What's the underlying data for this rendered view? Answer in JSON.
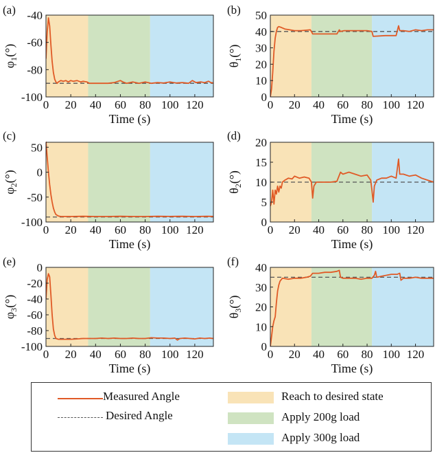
{
  "chart_data": [
    {
      "panel_label": "(a)",
      "type": "line",
      "ylabel": "φ1(°)",
      "ylabel_main": "φ",
      "ylabel_sub": "1",
      "xlabel": "Time (s)",
      "ylim": [
        -100,
        -40
      ],
      "yticks": [
        -40,
        -60,
        -80,
        -100
      ],
      "xlim": [
        0,
        135
      ],
      "xticks": [
        0,
        20,
        40,
        60,
        80,
        100,
        120
      ],
      "desired": -90,
      "measured": [
        [
          0,
          -72
        ],
        [
          1,
          -52
        ],
        [
          2,
          -42
        ],
        [
          3,
          -48
        ],
        [
          4,
          -62
        ],
        [
          5,
          -74
        ],
        [
          6,
          -82
        ],
        [
          7,
          -87
        ],
        [
          8,
          -89
        ],
        [
          9,
          -90
        ],
        [
          10,
          -89
        ],
        [
          12,
          -88
        ],
        [
          14,
          -88.5
        ],
        [
          16,
          -88
        ],
        [
          18,
          -89
        ],
        [
          20,
          -88
        ],
        [
          22,
          -88.5
        ],
        [
          25,
          -88
        ],
        [
          28,
          -89
        ],
        [
          30,
          -88.5
        ],
        [
          33,
          -89
        ],
        [
          35,
          -90
        ],
        [
          40,
          -90
        ],
        [
          50,
          -90
        ],
        [
          55,
          -89.5
        ],
        [
          60,
          -88
        ],
        [
          62,
          -89
        ],
        [
          65,
          -90
        ],
        [
          70,
          -89
        ],
        [
          75,
          -90
        ],
        [
          80,
          -89
        ],
        [
          85,
          -90
        ],
        [
          90,
          -89.5
        ],
        [
          95,
          -89.8
        ],
        [
          100,
          -89
        ],
        [
          105,
          -89.8
        ],
        [
          110,
          -89.5
        ],
        [
          115,
          -90
        ],
        [
          118,
          -88
        ],
        [
          121,
          -89.5
        ],
        [
          125,
          -89
        ],
        [
          128,
          -89.5
        ],
        [
          131,
          -88.5
        ],
        [
          133,
          -89.5
        ],
        [
          135,
          -89.8
        ]
      ]
    },
    {
      "panel_label": "(b)",
      "type": "line",
      "ylabel": "θ1(°)",
      "ylabel_main": "θ",
      "ylabel_sub": "1",
      "xlabel": "Time (s)",
      "ylim": [
        0,
        50
      ],
      "yticks": [
        0,
        10,
        20,
        30,
        40,
        50
      ],
      "xlim": [
        0,
        135
      ],
      "xticks": [
        0,
        20,
        40,
        60,
        80,
        100,
        120
      ],
      "desired": 40,
      "measured": [
        [
          0,
          0
        ],
        [
          1,
          5
        ],
        [
          2,
          15
        ],
        [
          3,
          28
        ],
        [
          4,
          36
        ],
        [
          5,
          40
        ],
        [
          6,
          42.5
        ],
        [
          7,
          43
        ],
        [
          9,
          42.5
        ],
        [
          12,
          41.5
        ],
        [
          16,
          41
        ],
        [
          20,
          40.5
        ],
        [
          25,
          40.5
        ],
        [
          30,
          40.8
        ],
        [
          33,
          41
        ],
        [
          34,
          40
        ],
        [
          35,
          38.5
        ],
        [
          45,
          38.5
        ],
        [
          55,
          38.5
        ],
        [
          57,
          41
        ],
        [
          58,
          40
        ],
        [
          61,
          40.5
        ],
        [
          70,
          40.5
        ],
        [
          80,
          40.5
        ],
        [
          84,
          40
        ],
        [
          85,
          37
        ],
        [
          95,
          37.5
        ],
        [
          104,
          37.5
        ],
        [
          106,
          43.5
        ],
        [
          107,
          40.5
        ],
        [
          110,
          40.5
        ],
        [
          115,
          40
        ],
        [
          120,
          41
        ],
        [
          125,
          40.5
        ],
        [
          130,
          41
        ],
        [
          135,
          41
        ]
      ]
    },
    {
      "panel_label": "(c)",
      "type": "line",
      "ylabel": "φ2(°)",
      "ylabel_main": "φ",
      "ylabel_sub": "2",
      "xlabel": "Time (s)",
      "ylim": [
        -100,
        60
      ],
      "yticks": [
        50,
        0,
        -50,
        -100
      ],
      "xlim": [
        0,
        135
      ],
      "xticks": [
        0,
        20,
        40,
        60,
        80,
        100,
        120
      ],
      "desired": -90,
      "measured": [
        [
          0,
          62
        ],
        [
          1,
          30
        ],
        [
          2,
          0
        ],
        [
          3,
          -25
        ],
        [
          4,
          -45
        ],
        [
          5,
          -60
        ],
        [
          6,
          -72
        ],
        [
          7,
          -80
        ],
        [
          8,
          -85
        ],
        [
          10,
          -88
        ],
        [
          12,
          -89
        ],
        [
          20,
          -89
        ],
        [
          30,
          -88.5
        ],
        [
          40,
          -89
        ],
        [
          50,
          -89
        ],
        [
          60,
          -88.5
        ],
        [
          70,
          -89
        ],
        [
          80,
          -89
        ],
        [
          90,
          -88.5
        ],
        [
          100,
          -88.8
        ],
        [
          110,
          -88.5
        ],
        [
          120,
          -89
        ],
        [
          130,
          -88.5
        ],
        [
          135,
          -88.8
        ]
      ]
    },
    {
      "panel_label": "(d)",
      "type": "line",
      "ylabel": "θ2(°)",
      "ylabel_main": "θ",
      "ylabel_sub": "2",
      "xlabel": "Time (s)",
      "ylim": [
        0,
        20
      ],
      "yticks": [
        0,
        5,
        10,
        15,
        20
      ],
      "xlim": [
        0,
        135
      ],
      "xticks": [
        0,
        20,
        40,
        60,
        80,
        100,
        120
      ],
      "desired": 10,
      "measured": [
        [
          0,
          4
        ],
        [
          1,
          5
        ],
        [
          2,
          8
        ],
        [
          3,
          4.5
        ],
        [
          4,
          8
        ],
        [
          5,
          7
        ],
        [
          6,
          9
        ],
        [
          7,
          7.5
        ],
        [
          8,
          9
        ],
        [
          9,
          8.5
        ],
        [
          10,
          10
        ],
        [
          12,
          10.5
        ],
        [
          15,
          11
        ],
        [
          18,
          10.8
        ],
        [
          20,
          11.5
        ],
        [
          24,
          11
        ],
        [
          28,
          11.3
        ],
        [
          32,
          11
        ],
        [
          34,
          10
        ],
        [
          35,
          6
        ],
        [
          36,
          9
        ],
        [
          38,
          10
        ],
        [
          42,
          10
        ],
        [
          50,
          10
        ],
        [
          55,
          10.2
        ],
        [
          58,
          12.5
        ],
        [
          60,
          12
        ],
        [
          65,
          12.5
        ],
        [
          70,
          12
        ],
        [
          75,
          11.5
        ],
        [
          80,
          11.8
        ],
        [
          83,
          10.5
        ],
        [
          84,
          8
        ],
        [
          85,
          5
        ],
        [
          86,
          9
        ],
        [
          88,
          10.5
        ],
        [
          92,
          11
        ],
        [
          96,
          11
        ],
        [
          100,
          11.5
        ],
        [
          104,
          11
        ],
        [
          106,
          15.8
        ],
        [
          107,
          12
        ],
        [
          110,
          12
        ],
        [
          115,
          11.5
        ],
        [
          120,
          11.8
        ],
        [
          125,
          11
        ],
        [
          130,
          10.5
        ],
        [
          135,
          10
        ]
      ]
    },
    {
      "panel_label": "(e)",
      "type": "line",
      "ylabel": "φ3(°)",
      "ylabel_main": "φ",
      "ylabel_sub": "3",
      "xlabel": "Time (s)",
      "ylim": [
        -100,
        0
      ],
      "yticks": [
        0,
        -20,
        -40,
        -60,
        -80,
        -100
      ],
      "xlim": [
        0,
        135
      ],
      "xticks": [
        0,
        20,
        40,
        60,
        80,
        100,
        120
      ],
      "desired": -90,
      "measured": [
        [
          0,
          -40
        ],
        [
          1,
          -15
        ],
        [
          2,
          -8
        ],
        [
          3,
          -12
        ],
        [
          4,
          -35
        ],
        [
          5,
          -60
        ],
        [
          6,
          -78
        ],
        [
          7,
          -86
        ],
        [
          8,
          -90
        ],
        [
          10,
          -91
        ],
        [
          15,
          -91
        ],
        [
          20,
          -91
        ],
        [
          25,
          -90.5
        ],
        [
          30,
          -90
        ],
        [
          35,
          -90
        ],
        [
          40,
          -90
        ],
        [
          45,
          -89.5
        ],
        [
          50,
          -90
        ],
        [
          55,
          -89.5
        ],
        [
          60,
          -90
        ],
        [
          65,
          -90
        ],
        [
          70,
          -89.5
        ],
        [
          75,
          -90
        ],
        [
          80,
          -90
        ],
        [
          85,
          -89
        ],
        [
          90,
          -89.5
        ],
        [
          95,
          -89.5
        ],
        [
          100,
          -90
        ],
        [
          104,
          -89.5
        ],
        [
          106,
          -92
        ],
        [
          108,
          -90
        ],
        [
          112,
          -89.5
        ],
        [
          116,
          -90
        ],
        [
          120,
          -90.5
        ],
        [
          124,
          -89.5
        ],
        [
          128,
          -90
        ],
        [
          132,
          -89.5
        ],
        [
          135,
          -90
        ]
      ]
    },
    {
      "panel_label": "(f)",
      "type": "line",
      "ylabel": "θ3(°)",
      "ylabel_main": "θ",
      "ylabel_sub": "3",
      "xlabel": "Time (s)",
      "ylim": [
        0,
        40
      ],
      "yticks": [
        0,
        10,
        20,
        30,
        40
      ],
      "xlim": [
        0,
        135
      ],
      "xticks": [
        0,
        20,
        40,
        60,
        80,
        100,
        120
      ],
      "desired": 35,
      "measured": [
        [
          0,
          0
        ],
        [
          1,
          5
        ],
        [
          2,
          10
        ],
        [
          3,
          13
        ],
        [
          4,
          15
        ],
        [
          5,
          22
        ],
        [
          6,
          28
        ],
        [
          7,
          31
        ],
        [
          8,
          33
        ],
        [
          10,
          34.5
        ],
        [
          15,
          34
        ],
        [
          20,
          34.5
        ],
        [
          25,
          34.5
        ],
        [
          30,
          35
        ],
        [
          33,
          35.5
        ],
        [
          35,
          37
        ],
        [
          40,
          37
        ],
        [
          45,
          37.5
        ],
        [
          50,
          37.5
        ],
        [
          55,
          38
        ],
        [
          57,
          38.5
        ],
        [
          58,
          35
        ],
        [
          60,
          34.5
        ],
        [
          70,
          34.5
        ],
        [
          75,
          34
        ],
        [
          80,
          34.5
        ],
        [
          84,
          34.5
        ],
        [
          86,
          36
        ],
        [
          87,
          38
        ],
        [
          88,
          35
        ],
        [
          92,
          35.5
        ],
        [
          100,
          36.5
        ],
        [
          105,
          36.5
        ],
        [
          107,
          37
        ],
        [
          108,
          33.5
        ],
        [
          110,
          34.5
        ],
        [
          115,
          34.5
        ],
        [
          120,
          35
        ],
        [
          125,
          34.5
        ],
        [
          130,
          34.5
        ],
        [
          135,
          34.5
        ]
      ]
    }
  ],
  "regions": [
    {
      "start": 0,
      "end": 34,
      "color": "#f9e3b7",
      "label": "Reach to desired state"
    },
    {
      "start": 34,
      "end": 84,
      "color": "#cfe3c1",
      "label": "Apply 200g load"
    },
    {
      "start": 84,
      "end": 135,
      "color": "#c4e5f5",
      "label": "Apply 300g load"
    }
  ],
  "legend": {
    "measured_label": "Measured Angle",
    "desired_label": "Desired Angle",
    "reach_label": "Reach to desired state",
    "load200_label": "Apply 200g load",
    "load300_label": "Apply 300g load"
  },
  "colors": {
    "measured": "#e05a26",
    "desired": "#555555"
  }
}
